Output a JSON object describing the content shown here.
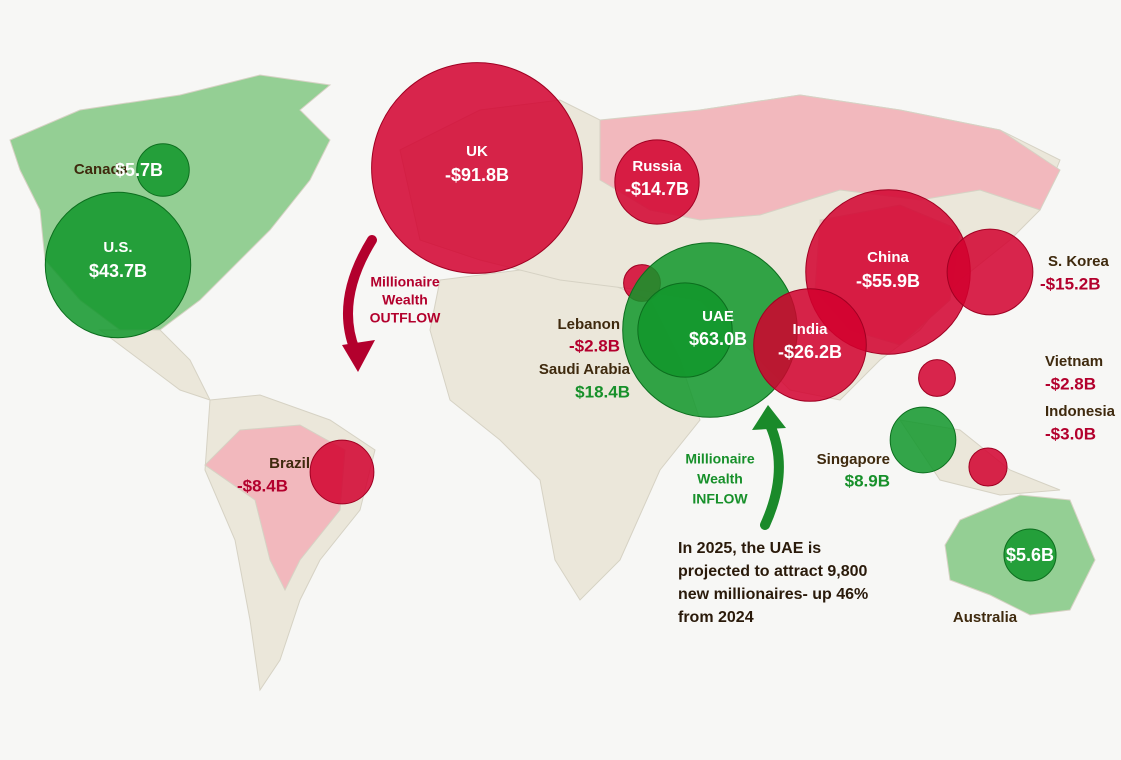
{
  "countries": [
    {
      "name": "Canada",
      "value": 5.7,
      "label": "$5.7B"
    },
    {
      "name": "U.S.",
      "value": 43.7,
      "label": "$43.7B"
    },
    {
      "name": "UK",
      "value": -91.8,
      "label": "-$91.8B"
    },
    {
      "name": "Russia",
      "value": -14.7,
      "label": "-$14.7B"
    },
    {
      "name": "China",
      "value": -55.9,
      "label": "-$55.9B"
    },
    {
      "name": "S. Korea",
      "value": -15.2,
      "label": "-$15.2B"
    },
    {
      "name": "Lebanon",
      "value": -2.8,
      "label": "-$2.8B"
    },
    {
      "name": "UAE",
      "value": 63.0,
      "label": "$63.0B"
    },
    {
      "name": "India",
      "value": -26.2,
      "label": "-$26.2B"
    },
    {
      "name": "Saudi Arabia",
      "value": 18.4,
      "label": "$18.4B"
    },
    {
      "name": "Vietnam",
      "value": -2.8,
      "label": "-$2.8B"
    },
    {
      "name": "Indonesia",
      "value": -3.0,
      "label": "-$3.0B"
    },
    {
      "name": "Singapore",
      "value": 8.9,
      "label": "$8.9B"
    },
    {
      "name": "Brazil",
      "value": -8.4,
      "label": "-$8.4B"
    },
    {
      "name": "Australia",
      "value": 5.6,
      "label": "$5.6B"
    }
  ],
  "outflow_label": [
    "Millionaire",
    "Wealth",
    "OUTFLOW"
  ],
  "inflow_label": [
    "Millionaire",
    "Wealth",
    "INFLOW"
  ],
  "note": [
    "In 2025, the UAE is",
    "projected to attract 9,800",
    "new millionaires- up 46%",
    "from 2024"
  ]
}
